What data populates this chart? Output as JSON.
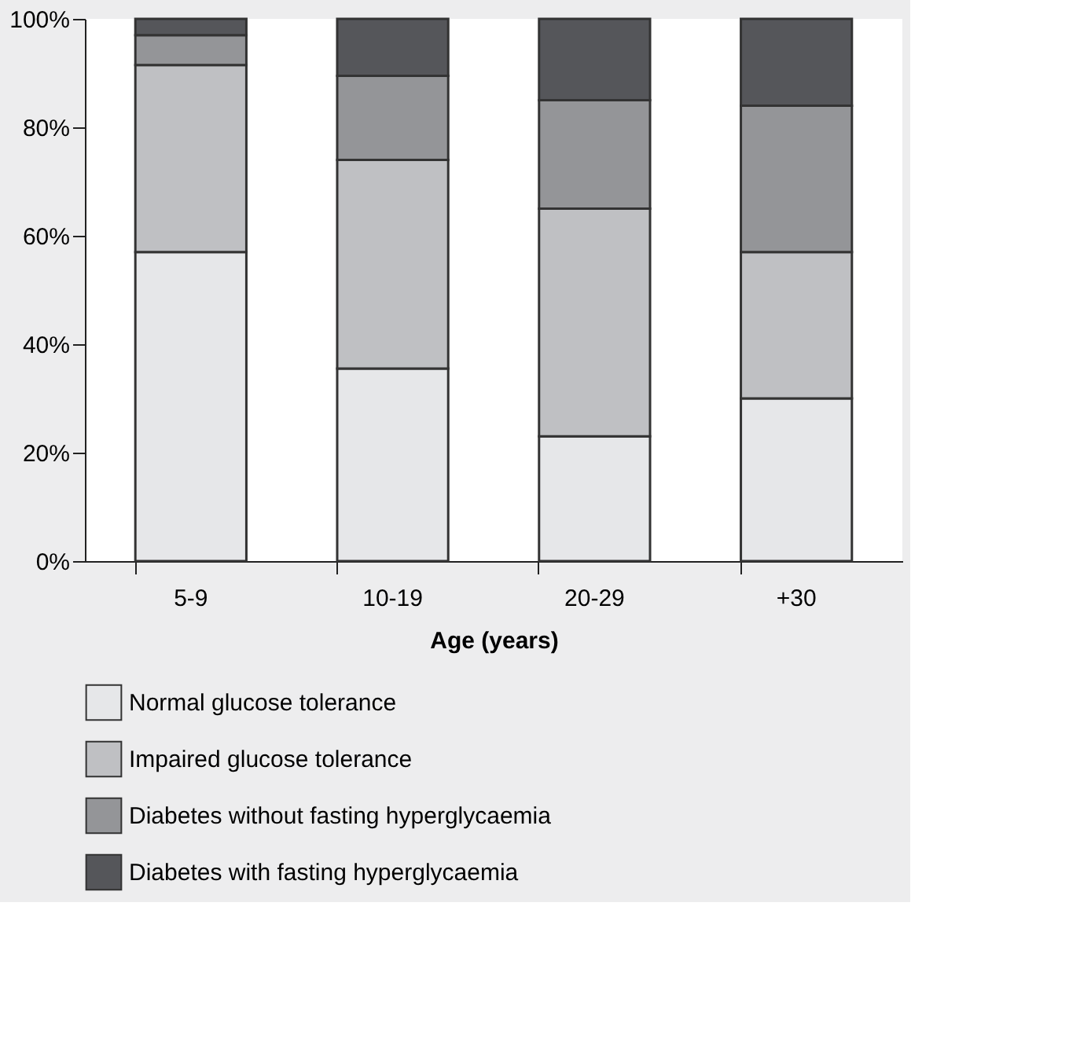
{
  "chart_data": {
    "type": "bar",
    "stacked": true,
    "xlabel": "Age (years)",
    "categories": [
      "5-9",
      "10-19",
      "20-29",
      "+30"
    ],
    "series": [
      {
        "name": "Normal glucose tolerance",
        "color": "#e6e7e9",
        "values": [
          57,
          35.5,
          23,
          30
        ]
      },
      {
        "name": "Impaired glucose tolerance",
        "color": "#bfc0c3",
        "values": [
          34.5,
          38.5,
          42,
          27
        ]
      },
      {
        "name": "Diabetes without fasting hyperglycaemia",
        "color": "#949598",
        "values": [
          5.5,
          15.5,
          20,
          27
        ]
      },
      {
        "name": "Diabetes with fasting hyperglycaemia",
        "color": "#55565a",
        "values": [
          3,
          10.5,
          15,
          16
        ]
      }
    ],
    "ylim": [
      0,
      100
    ],
    "yticks": [
      {
        "value": 0,
        "label": "0%"
      },
      {
        "value": 20,
        "label": "20%"
      },
      {
        "value": 40,
        "label": "40%"
      },
      {
        "value": 60,
        "label": "60%"
      },
      {
        "value": 80,
        "label": "80%"
      },
      {
        "value": 100,
        "label": "100%"
      }
    ],
    "grid": false,
    "legend": "bottom"
  }
}
